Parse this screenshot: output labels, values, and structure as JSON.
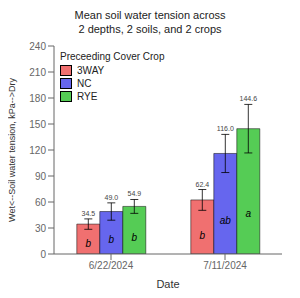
{
  "chart_data": {
    "type": "bar",
    "title": "Mean soil water tension across\n2 depths, 2 soils, and 2 crops",
    "xlabel": "Date",
    "ylabel": "Wet<--Soil water tension, kPa-->Dry",
    "categories": [
      "6/22/2024",
      "7/11/2024"
    ],
    "series": [
      {
        "name": "3WAY",
        "color": "#f07070",
        "values": [
          34.5,
          62.4
        ],
        "value_labels": [
          "34.5",
          "62.4"
        ],
        "errors": [
          6.0,
          12.0
        ],
        "letters": [
          "b",
          "b"
        ]
      },
      {
        "name": "NC",
        "color": "#6666ee",
        "values": [
          49.0,
          116.0
        ],
        "value_labels": [
          "49.0",
          "116.0"
        ],
        "errors": [
          10.0,
          22.0
        ],
        "letters": [
          "b",
          "ab"
        ]
      },
      {
        "name": "RYE",
        "color": "#55cc55",
        "values": [
          54.9,
          144.6
        ],
        "value_labels": [
          "54.9",
          "144.6"
        ],
        "errors": [
          8.0,
          28.0
        ],
        "letters": [
          "b",
          "a"
        ]
      }
    ],
    "ylim": [
      0,
      240
    ],
    "yticks": [
      0,
      30,
      60,
      90,
      120,
      150,
      180,
      210,
      240
    ],
    "legend": "upper left",
    "legend_title": "Preceeding Cover Crop",
    "data_labels": true,
    "grid": false
  }
}
